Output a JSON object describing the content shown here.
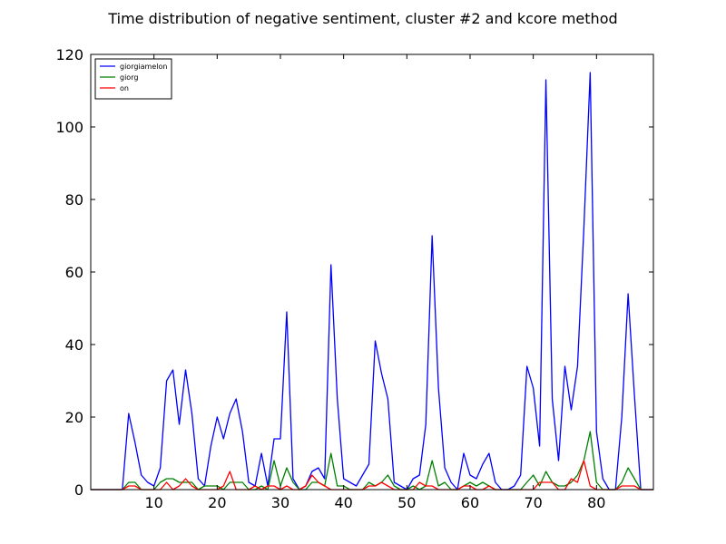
{
  "chart_data": {
    "type": "line",
    "title": "Time distribution of negative sentiment, cluster #2 and kcore method",
    "xlabel": "",
    "ylabel": "",
    "xlim": [
      0,
      89
    ],
    "ylim": [
      0,
      120
    ],
    "xticks": [
      10,
      20,
      30,
      40,
      50,
      60,
      70,
      80
    ],
    "yticks": [
      0,
      20,
      40,
      60,
      80,
      100,
      120
    ],
    "grid": false,
    "legend_position": "top-left",
    "series": [
      {
        "name": "giorgiamelon",
        "color": "#0000ff",
        "x": [
          0,
          1,
          2,
          3,
          4,
          5,
          6,
          7,
          8,
          9,
          10,
          11,
          12,
          13,
          14,
          15,
          16,
          17,
          18,
          19,
          20,
          21,
          22,
          23,
          24,
          25,
          26,
          27,
          28,
          29,
          30,
          31,
          32,
          33,
          34,
          35,
          36,
          37,
          38,
          39,
          40,
          41,
          42,
          43,
          44,
          45,
          46,
          47,
          48,
          49,
          50,
          51,
          52,
          53,
          54,
          55,
          56,
          57,
          58,
          59,
          60,
          61,
          62,
          63,
          64,
          65,
          66,
          67,
          68,
          69,
          70,
          71,
          72,
          73,
          74,
          75,
          76,
          77,
          78,
          79,
          80,
          81,
          82,
          83,
          84,
          85,
          86,
          87,
          88,
          89
        ],
        "y": [
          0,
          0,
          0,
          0,
          0,
          0,
          21,
          13,
          4,
          2,
          1,
          6,
          30,
          33,
          18,
          33,
          21,
          3,
          1,
          12,
          20,
          14,
          21,
          25,
          16,
          2,
          1,
          10,
          1,
          14,
          14,
          49,
          3,
          0,
          1,
          5,
          6,
          3,
          62,
          25,
          3,
          2,
          1,
          4,
          7,
          41,
          32,
          25,
          2,
          1,
          0,
          3,
          4,
          18,
          70,
          28,
          6,
          2,
          0,
          10,
          4,
          3,
          7,
          10,
          2,
          0,
          0,
          1,
          4,
          34,
          28,
          12,
          113,
          25,
          8,
          34,
          22,
          34,
          72,
          115,
          16,
          3,
          0,
          0,
          20,
          54,
          26,
          0,
          0,
          0
        ]
      },
      {
        "name": "giorg",
        "color": "#008000",
        "x": [
          0,
          1,
          2,
          3,
          4,
          5,
          6,
          7,
          8,
          9,
          10,
          11,
          12,
          13,
          14,
          15,
          16,
          17,
          18,
          19,
          20,
          21,
          22,
          23,
          24,
          25,
          26,
          27,
          28,
          29,
          30,
          31,
          32,
          33,
          34,
          35,
          36,
          37,
          38,
          39,
          40,
          41,
          42,
          43,
          44,
          45,
          46,
          47,
          48,
          49,
          50,
          51,
          52,
          53,
          54,
          55,
          56,
          57,
          58,
          59,
          60,
          61,
          62,
          63,
          64,
          65,
          66,
          67,
          68,
          69,
          70,
          71,
          72,
          73,
          74,
          75,
          76,
          77,
          78,
          79,
          80,
          81,
          82,
          83,
          84,
          85,
          86,
          87,
          88,
          89
        ],
        "y": [
          0,
          0,
          0,
          0,
          0,
          0,
          2,
          2,
          0,
          0,
          0,
          2,
          3,
          3,
          2,
          2,
          2,
          0,
          1,
          1,
          1,
          0,
          2,
          2,
          2,
          0,
          0,
          1,
          0,
          8,
          1,
          6,
          2,
          0,
          0,
          2,
          2,
          1,
          10,
          1,
          1,
          0,
          0,
          0,
          2,
          1,
          2,
          4,
          1,
          0,
          0,
          1,
          0,
          1,
          8,
          1,
          2,
          0,
          0,
          1,
          2,
          1,
          2,
          1,
          0,
          0,
          0,
          0,
          0,
          2,
          4,
          1,
          5,
          2,
          1,
          1,
          2,
          4,
          8,
          16,
          2,
          0,
          0,
          0,
          2,
          6,
          3,
          0,
          0,
          0
        ]
      },
      {
        "name": "on",
        "color": "#ff0000",
        "x": [
          0,
          1,
          2,
          3,
          4,
          5,
          6,
          7,
          8,
          9,
          10,
          11,
          12,
          13,
          14,
          15,
          16,
          17,
          18,
          19,
          20,
          21,
          22,
          23,
          24,
          25,
          26,
          27,
          28,
          29,
          30,
          31,
          32,
          33,
          34,
          35,
          36,
          37,
          38,
          39,
          40,
          41,
          42,
          43,
          44,
          45,
          46,
          47,
          48,
          49,
          50,
          51,
          52,
          53,
          54,
          55,
          56,
          57,
          58,
          59,
          60,
          61,
          62,
          63,
          64,
          65,
          66,
          67,
          68,
          69,
          70,
          71,
          72,
          73,
          74,
          75,
          76,
          77,
          78,
          79,
          80,
          81,
          82,
          83,
          84,
          85,
          86,
          87,
          88,
          89
        ],
        "y": [
          0,
          0,
          0,
          0,
          0,
          0,
          1,
          1,
          0,
          0,
          0,
          0,
          2,
          0,
          1,
          3,
          1,
          0,
          0,
          0,
          0,
          1,
          5,
          0,
          0,
          0,
          1,
          0,
          1,
          1,
          0,
          1,
          0,
          0,
          1,
          4,
          2,
          1,
          0,
          0,
          0,
          0,
          0,
          0,
          1,
          1,
          2,
          1,
          0,
          0,
          0,
          0,
          2,
          1,
          1,
          0,
          0,
          0,
          0,
          1,
          1,
          0,
          0,
          1,
          0,
          0,
          0,
          0,
          0,
          0,
          0,
          2,
          2,
          2,
          0,
          0,
          3,
          2,
          8,
          1,
          0,
          0,
          0,
          0,
          1,
          1,
          1,
          0,
          0,
          0
        ]
      }
    ]
  }
}
